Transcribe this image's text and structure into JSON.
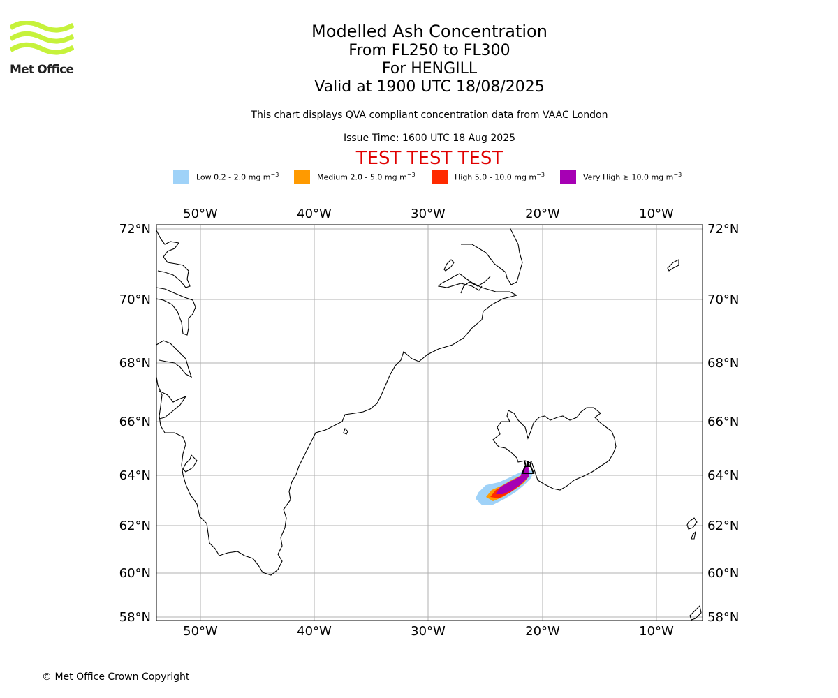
{
  "logo": {
    "text": "Met Office",
    "color": "#c6f23b"
  },
  "titles": {
    "line1": "Modelled Ash Concentration",
    "line2": "From FL250 to FL300",
    "line3": "For HENGILL",
    "line4": "Valid at 1900 UTC 18/08/2025"
  },
  "description": "This chart displays QVA compliant concentration data from VAAC London",
  "issue_time": "Issue Time: 1600 UTC 18 Aug 2025",
  "test_banner": "TEST TEST TEST",
  "legend": [
    {
      "label": "Low 0.2 - 2.0 mg m",
      "sup": "−3",
      "color": "#9fd2f8"
    },
    {
      "label": "Medium 2.0 - 5.0 mg m",
      "sup": "−3",
      "color": "#ff9a00"
    },
    {
      "label": "High 5.0 - 10.0 mg m",
      "sup": "−3",
      "color": "#ff2a00"
    },
    {
      "label": "Very High  ≥  10.0 mg m",
      "sup": "−3",
      "color": "#a600b4"
    }
  ],
  "map": {
    "lon_labels": [
      "50°W",
      "40°W",
      "30°W",
      "20°W",
      "10°W"
    ],
    "lat_labels": [
      "72°N",
      "70°N",
      "68°N",
      "66°N",
      "64°N",
      "62°N",
      "60°N",
      "58°N"
    ],
    "volcano": "HENGILL"
  },
  "copyright": "© Met Office Crown Copyright"
}
